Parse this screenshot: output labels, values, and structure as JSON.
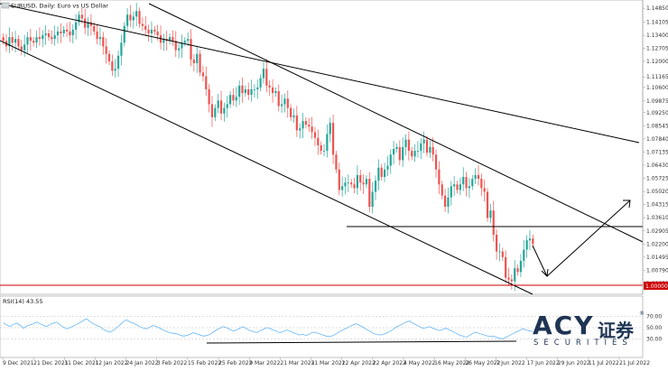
{
  "header": {
    "symbol_text": "EURUSD, Daily: Euro vs US Dollar"
  },
  "rsi_header": {
    "label": "RSI(14) 43.55"
  },
  "price_tag": "1.00000",
  "watermark": {
    "logo": "ACY",
    "cn": "证券",
    "sub": "SECURITIES",
    "reg": "®"
  },
  "chart_data": [
    {
      "type": "candlestick",
      "title": "",
      "price_axis_ticks": [
        "1.14850",
        "1.14105",
        "1.13400",
        "1.12705",
        "1.12000",
        "1.11165",
        "1.10600",
        "1.09875",
        "1.09250",
        "1.08545",
        "1.07840",
        "1.07135",
        "1.06430",
        "1.05725",
        "1.05020",
        "1.04315",
        "1.03610",
        "1.02905",
        "1.02200",
        "1.01495",
        "1.00790",
        "1.00080"
      ],
      "ylim": [
        0.997,
        1.15
      ],
      "date_axis_labels": [
        "9 Dec 2021",
        "21 Dec 2021",
        "31 Dec 2021",
        "12 Jan 2022",
        "24 Jan 2022",
        "3 Feb 2022",
        "15 Feb 2022",
        "25 Feb 2022",
        "9 Mar 2022",
        "21 Mar 2022",
        "31 Mar 2022",
        "12 Apr 2022",
        "22 Apr 2022",
        "4 May 2022",
        "16 May 2022",
        "26 May 2022",
        "7 Jun 2022",
        "17 Jun 2022",
        "29 Jun 2022",
        "11 Jul 2022",
        "21 Jul 2022"
      ],
      "colors": {
        "bull": "#26a69a",
        "bear": "#ef5350",
        "line": "#000000",
        "support": "#cc0000"
      },
      "closes": [
        1.131,
        1.128,
        1.133,
        1.13,
        1.132,
        1.128,
        1.126,
        1.129,
        1.133,
        1.131,
        1.13,
        1.133,
        1.132,
        1.134,
        1.135,
        1.133,
        1.132,
        1.134,
        1.136,
        1.135,
        1.137,
        1.136,
        1.134,
        1.137,
        1.141,
        1.145,
        1.143,
        1.138,
        1.141,
        1.139,
        1.136,
        1.132,
        1.133,
        1.128,
        1.124,
        1.12,
        1.115,
        1.116,
        1.123,
        1.13,
        1.139,
        1.145,
        1.142,
        1.144,
        1.147,
        1.14,
        1.139,
        1.137,
        1.135,
        1.137,
        1.136,
        1.134,
        1.13,
        1.132,
        1.131,
        1.133,
        1.131,
        1.126,
        1.127,
        1.13,
        1.131,
        1.132,
        1.121,
        1.119,
        1.124,
        1.114,
        1.112,
        1.105,
        1.097,
        1.09,
        1.095,
        1.099,
        1.092,
        1.095,
        1.097,
        1.102,
        1.099,
        1.101,
        1.107,
        1.103,
        1.105,
        1.102,
        1.105,
        1.105,
        1.106,
        1.111,
        1.116,
        1.107,
        1.106,
        1.103,
        1.104,
        1.096,
        1.097,
        1.1,
        1.095,
        1.09,
        1.091,
        1.083,
        1.084,
        1.088,
        1.086,
        1.085,
        1.082,
        1.079,
        1.075,
        1.072,
        1.072,
        1.081,
        1.087,
        1.07,
        1.062,
        1.051,
        1.053,
        1.055,
        1.055,
        1.054,
        1.052,
        1.059,
        1.055,
        1.054,
        1.057,
        1.042,
        1.05,
        1.056,
        1.063,
        1.058,
        1.062,
        1.064,
        1.07,
        1.073,
        1.074,
        1.067,
        1.074,
        1.078,
        1.072,
        1.069,
        1.072,
        1.072,
        1.076,
        1.078,
        1.071,
        1.074,
        1.07,
        1.062,
        1.054,
        1.048,
        1.042,
        1.047,
        1.053,
        1.054,
        1.051,
        1.054,
        1.058,
        1.052,
        1.053,
        1.057,
        1.059,
        1.057,
        1.052,
        1.05,
        1.036,
        1.04,
        1.027,
        1.018,
        1.018,
        1.015,
        1.004,
        1.003,
        1.002,
        1.009,
        1.007,
        1.013,
        1.019,
        1.024,
        1.025,
        1.022
      ]
    },
    {
      "type": "line",
      "title": "",
      "series": [
        {
          "values": [
            59,
            55,
            52,
            56,
            58,
            54,
            49,
            53,
            55,
            57,
            60,
            57,
            54,
            52,
            56,
            58,
            60,
            55,
            51,
            48,
            50,
            53,
            56,
            59,
            63,
            66,
            61,
            57,
            54,
            52,
            47,
            44,
            42,
            45,
            50,
            55,
            61,
            64,
            60,
            58,
            55,
            52,
            49,
            48,
            51,
            54,
            52,
            49,
            46,
            43,
            41,
            40,
            39,
            37,
            35,
            36,
            38,
            41,
            39,
            37,
            35,
            36,
            38,
            42,
            46,
            49,
            52,
            50,
            47,
            44,
            46,
            49,
            52,
            48,
            45,
            43,
            41,
            44,
            47,
            50,
            49,
            46,
            44,
            41,
            43,
            46,
            44,
            41,
            39,
            37,
            38,
            36,
            39,
            42,
            41,
            39,
            37,
            35,
            34,
            36,
            39,
            43,
            46,
            49,
            52,
            55,
            57,
            54,
            51,
            47,
            44,
            40,
            38,
            37,
            38,
            40,
            43,
            47,
            51,
            54,
            57,
            60,
            62,
            58,
            55,
            52,
            49,
            50,
            52,
            49,
            47,
            45,
            47,
            49,
            46,
            43,
            40,
            37,
            35,
            33,
            36,
            40,
            42,
            39,
            38,
            36,
            34,
            35,
            33,
            31,
            30,
            33,
            36,
            39,
            42,
            45,
            48,
            46,
            44,
            43.55
          ]
        }
      ],
      "levels": [
        70,
        50,
        30
      ],
      "ylim": [
        0,
        100
      ]
    }
  ]
}
